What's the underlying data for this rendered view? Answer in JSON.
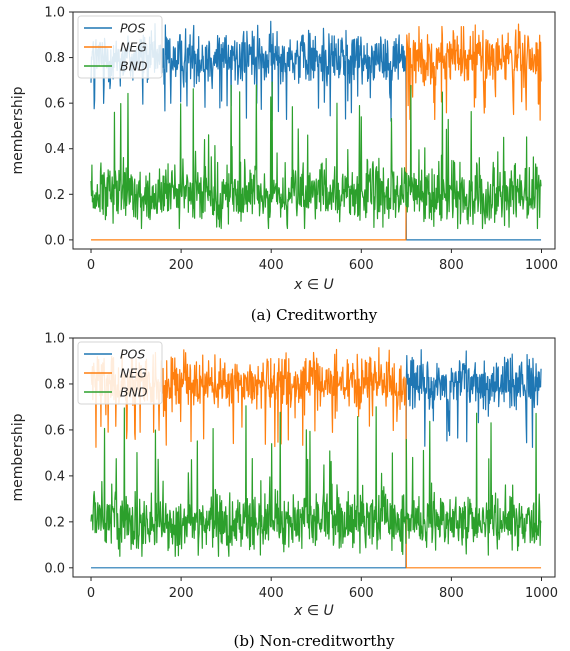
{
  "chart_data": [
    {
      "type": "line",
      "caption": "(a) Creditworthy",
      "xlabel": "x ∈ U",
      "ylabel": "membership",
      "xlim": [
        -40,
        1030
      ],
      "ylim": [
        -0.04,
        1.0
      ],
      "xticks": [
        0,
        200,
        400,
        600,
        800,
        1000
      ],
      "yticks": [
        0.0,
        0.2,
        0.4,
        0.6,
        0.8,
        1.0
      ],
      "ytick_labels": [
        "0.0",
        "0.2",
        "0.4",
        "0.6",
        "0.8",
        "1.0"
      ],
      "grid": false,
      "legend_position": "top-left",
      "n_points": 1000,
      "split_at": 700,
      "series": [
        {
          "name": "POS",
          "color": "#1f77b4",
          "high_segment": "before-split",
          "high_mean": 0.8,
          "high_range": [
            0.52,
            0.96
          ],
          "low_value": 0.0
        },
        {
          "name": "NEG",
          "color": "#ff7f0e",
          "high_segment": "after-split",
          "high_mean": 0.8,
          "high_range": [
            0.52,
            0.96
          ],
          "low_value": 0.0
        },
        {
          "name": "BND",
          "color": "#2ca02c",
          "mean": 0.2,
          "range": [
            0.05,
            0.35
          ],
          "spike_max": 0.72
        }
      ]
    },
    {
      "type": "line",
      "caption": "(b) Non-creditworthy",
      "xlabel": "x ∈ U",
      "ylabel": "membership",
      "xlim": [
        -40,
        1030
      ],
      "ylim": [
        -0.04,
        1.0
      ],
      "xticks": [
        0,
        200,
        400,
        600,
        800,
        1000
      ],
      "yticks": [
        0.0,
        0.2,
        0.4,
        0.6,
        0.8,
        1.0
      ],
      "ytick_labels": [
        "0.0",
        "0.2",
        "0.4",
        "0.6",
        "0.8",
        "1.0"
      ],
      "grid": false,
      "legend_position": "top-left",
      "n_points": 1000,
      "split_at": 700,
      "series": [
        {
          "name": "POS",
          "color": "#1f77b4",
          "high_segment": "after-split",
          "high_mean": 0.8,
          "high_range": [
            0.52,
            0.96
          ],
          "low_value": 0.0
        },
        {
          "name": "NEG",
          "color": "#ff7f0e",
          "high_segment": "before-split",
          "high_mean": 0.8,
          "high_range": [
            0.52,
            0.96
          ],
          "low_value": 0.0
        },
        {
          "name": "BND",
          "color": "#2ca02c",
          "mean": 0.2,
          "range": [
            0.05,
            0.35
          ],
          "spike_max": 0.72
        }
      ]
    }
  ]
}
